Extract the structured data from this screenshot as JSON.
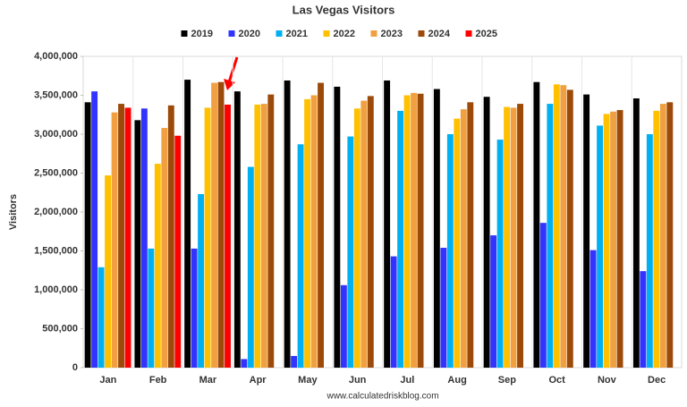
{
  "chart_data": {
    "type": "bar",
    "title": "Las Vegas Visitors",
    "y_label": "Visitors",
    "source": "www.calculatedriskblog.com",
    "categories": [
      "Jan",
      "Feb",
      "Mar",
      "Apr",
      "May",
      "Jun",
      "Jul",
      "Aug",
      "Sep",
      "Oct",
      "Nov",
      "Dec"
    ],
    "series": [
      {
        "name": "2019",
        "color": "#000000",
        "values": [
          3410000,
          3180000,
          3700000,
          3550000,
          3690000,
          3610000,
          3690000,
          3580000,
          3480000,
          3670000,
          3510000,
          3460000
        ]
      },
      {
        "name": "2020",
        "color": "#3333ff",
        "values": [
          3550000,
          3330000,
          1530000,
          110000,
          150000,
          1060000,
          1430000,
          1540000,
          1700000,
          1860000,
          1510000,
          1240000
        ]
      },
      {
        "name": "2021",
        "color": "#00b0f0",
        "values": [
          1290000,
          1530000,
          2230000,
          2580000,
          2870000,
          2970000,
          3300000,
          3000000,
          2930000,
          3390000,
          3110000,
          3000000
        ]
      },
      {
        "name": "2022",
        "color": "#ffc000",
        "values": [
          2470000,
          2620000,
          3340000,
          3380000,
          3450000,
          3330000,
          3500000,
          3200000,
          3350000,
          3640000,
          3260000,
          3300000
        ]
      },
      {
        "name": "2023",
        "color": "#f0a040",
        "values": [
          3280000,
          3080000,
          3660000,
          3390000,
          3500000,
          3430000,
          3530000,
          3320000,
          3340000,
          3630000,
          3290000,
          3390000
        ]
      },
      {
        "name": "2024",
        "color": "#9c4a0a",
        "values": [
          3390000,
          3370000,
          3670000,
          3510000,
          3660000,
          3490000,
          3520000,
          3410000,
          3390000,
          3570000,
          3310000,
          3410000
        ]
      },
      {
        "name": "2025",
        "color": "#ff0000",
        "values": [
          3340000,
          2980000,
          3380000,
          null,
          null,
          null,
          null,
          null,
          null,
          null,
          null,
          null
        ]
      }
    ],
    "ylim": [
      0,
      4000000
    ],
    "yticks": [
      0,
      {
        "value": 500000,
        "label": "500,000"
      },
      {
        "value": 1000000,
        "label": "1,000,000"
      },
      {
        "value": 1500000,
        "label": "1,500,000"
      },
      {
        "value": 2000000,
        "label": "2,000,000"
      },
      {
        "value": 2500000,
        "label": "2,500,000"
      },
      {
        "value": 3000000,
        "label": "3,000,000"
      },
      {
        "value": 3500000,
        "label": "3,500,000"
      },
      {
        "value": 4000000,
        "label": "4,000,000"
      }
    ],
    "grid": false
  }
}
